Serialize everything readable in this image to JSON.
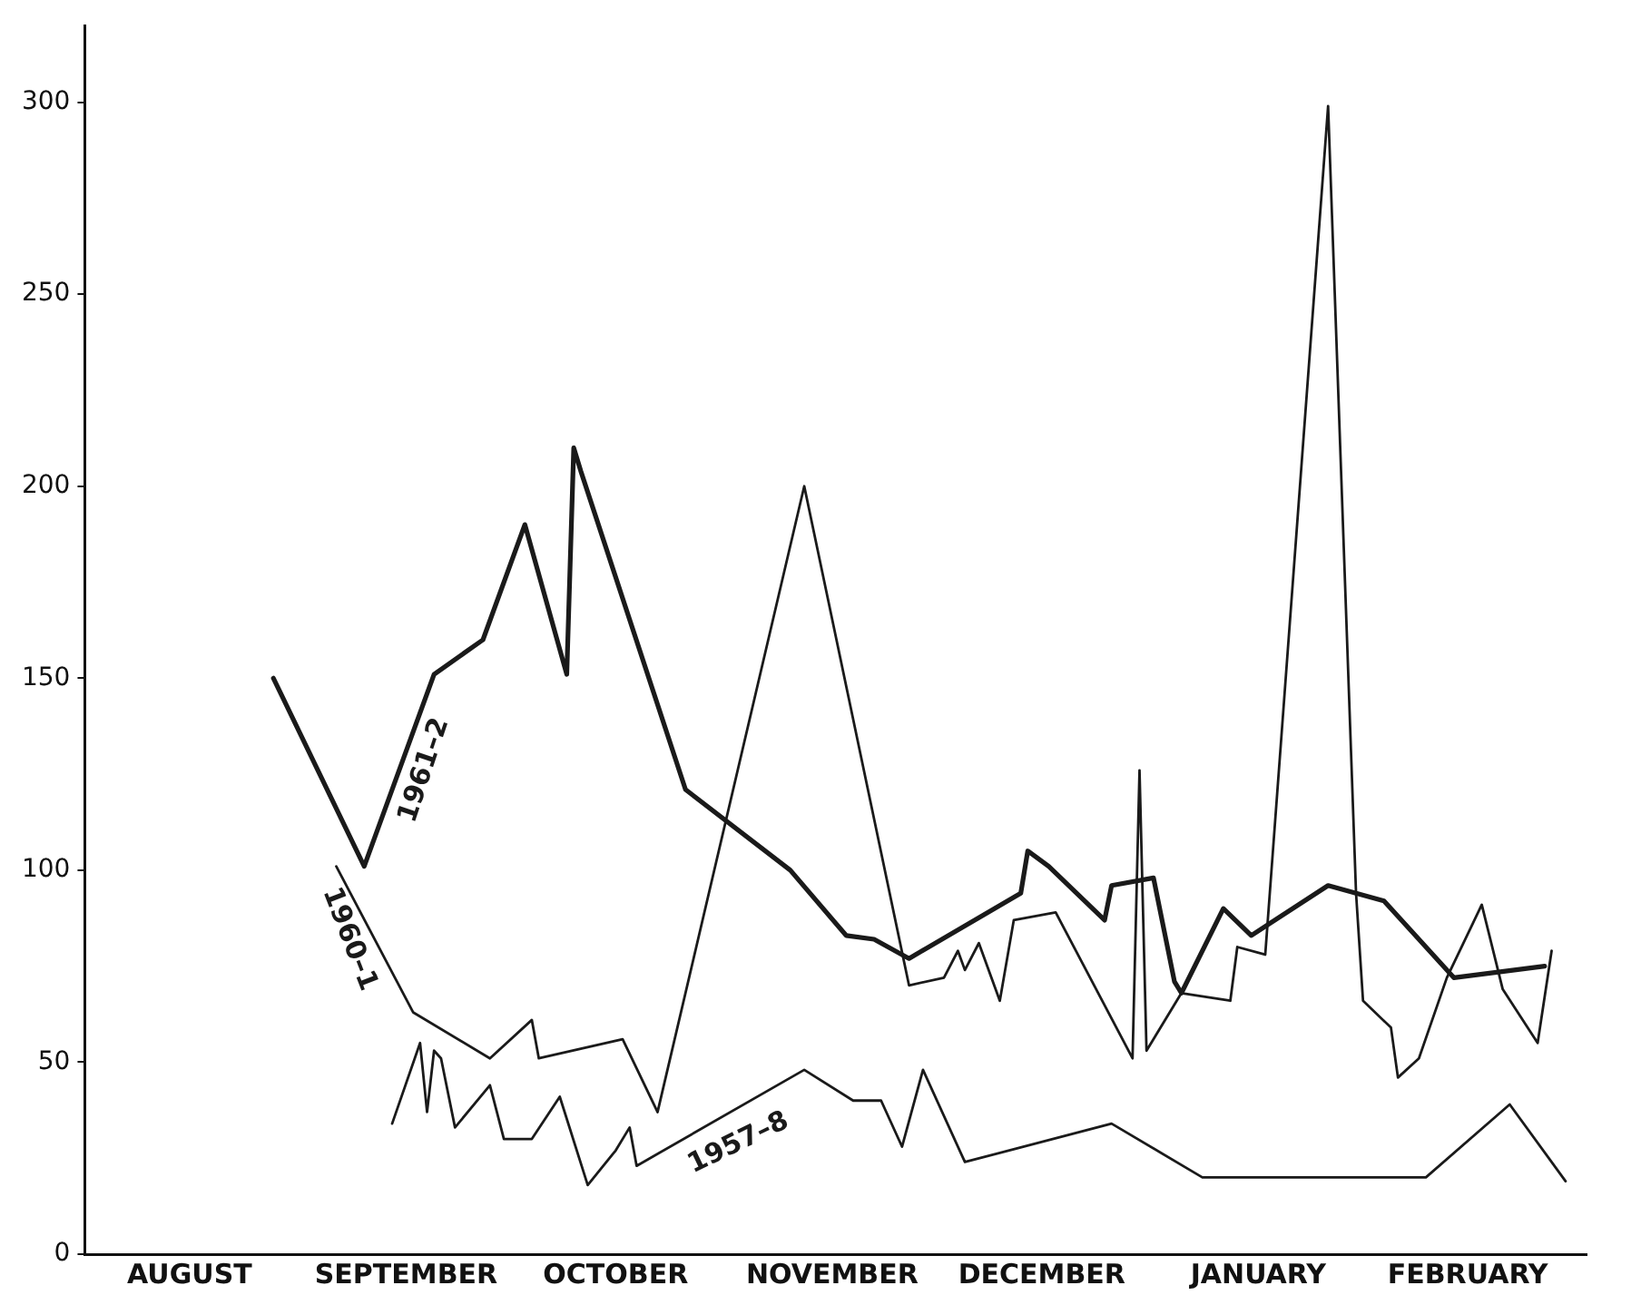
{
  "chart_data": {
    "type": "line",
    "xlim": [
      "1961-08-01",
      "1962-03-04"
    ],
    "ylim": [
      0,
      320
    ],
    "xticks": [
      {
        "value": "1961-08-16",
        "label": "AUGUST"
      },
      {
        "value": "1961-09-16",
        "label": "SEPTEMBER"
      },
      {
        "value": "1961-10-16",
        "label": "OCTOBER"
      },
      {
        "value": "1961-11-16",
        "label": "NOVEMBER"
      },
      {
        "value": "1961-12-16",
        "label": "DECEMBER"
      },
      {
        "value": "1962-01-16",
        "label": "JANUARY"
      },
      {
        "value": "1962-02-15",
        "label": "FEBRUARY"
      }
    ],
    "yticks": [
      0,
      50,
      100,
      150,
      200,
      250,
      300
    ],
    "grid": false,
    "legend": false,
    "marker": "none",
    "line_style": "solid",
    "series": [
      {
        "name": "1961–2",
        "color": "#1a1a1a",
        "x": [
          "1961-08-28",
          "1961-09-10",
          "1961-09-20",
          "1961-09-27",
          "1961-10-03",
          "1961-10-09",
          "1961-10-10",
          "1961-10-11",
          "1961-10-26",
          "1961-11-10",
          "1961-11-18",
          "1961-11-22",
          "1961-11-27",
          "1961-12-13",
          "1961-12-14",
          "1961-12-17",
          "1961-12-25",
          "1961-12-26",
          "1962-01-01",
          "1962-01-04",
          "1962-01-05",
          "1962-01-11",
          "1962-01-15",
          "1962-01-26",
          "1962-02-03",
          "1962-02-13",
          "1962-02-26"
        ],
        "values": [
          150,
          101,
          151,
          160,
          190,
          151,
          210,
          204,
          121,
          100,
          83,
          82,
          77,
          94,
          105,
          101,
          87,
          96,
          98,
          71,
          68,
          90,
          83,
          96,
          92,
          72,
          75
        ]
      },
      {
        "name": "1960–1",
        "color": "#1a1a1a",
        "x": [
          "1961-09-06",
          "1961-09-17",
          "1961-09-28",
          "1961-10-04",
          "1961-10-05",
          "1961-10-17",
          "1961-10-22",
          "1961-11-12",
          "1961-11-27",
          "1961-12-02",
          "1961-12-04",
          "1961-12-05",
          "1961-12-07",
          "1961-12-10",
          "1961-12-12",
          "1961-12-18",
          "1961-12-29",
          "1961-12-30",
          "1961-12-31",
          "1962-01-05",
          "1962-01-12",
          "1962-01-13",
          "1962-01-17",
          "1962-01-26",
          "1962-01-30",
          "1962-01-31",
          "1962-02-04",
          "1962-02-05",
          "1962-02-08",
          "1962-02-12",
          "1962-02-17",
          "1962-02-20",
          "1962-02-25",
          "1962-02-27"
        ],
        "values": [
          101,
          63,
          51,
          61,
          51,
          56,
          37,
          200,
          70,
          72,
          79,
          74,
          81,
          66,
          87,
          89,
          51,
          126,
          53,
          68,
          66,
          80,
          78,
          299,
          94,
          66,
          59,
          46,
          51,
          72,
          91,
          69,
          55,
          79
        ]
      },
      {
        "name": "1957–8",
        "color": "#1a1a1a",
        "x": [
          "1961-09-14",
          "1961-09-18",
          "1961-09-19",
          "1961-09-20",
          "1961-09-21",
          "1961-09-23",
          "1961-09-28",
          "1961-09-30",
          "1961-10-04",
          "1961-10-08",
          "1961-10-12",
          "1961-10-16",
          "1961-10-18",
          "1961-10-19",
          "1961-11-12",
          "1961-11-19",
          "1961-11-23",
          "1961-11-26",
          "1961-11-29",
          "1961-12-05",
          "1961-12-26",
          "1962-01-08",
          "1962-02-09",
          "1962-02-21",
          "1962-03-01"
        ],
        "values": [
          34,
          55,
          37,
          53,
          51,
          33,
          44,
          30,
          30,
          41,
          18,
          27,
          33,
          23,
          48,
          40,
          40,
          28,
          48,
          24,
          34,
          20,
          20,
          39,
          19
        ]
      }
    ]
  }
}
